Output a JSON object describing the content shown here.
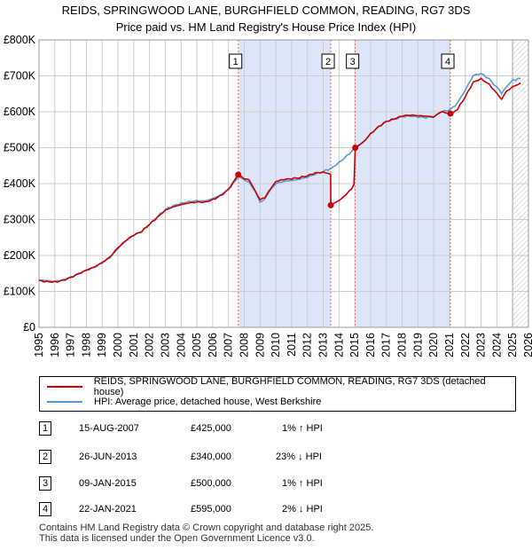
{
  "title_line1": "REIDS, SPRINGWOOD LANE, BURGHFIELD COMMON, READING, RG7 3DS",
  "title_line2": "Price paid vs. HM Land Registry's House Price Index (HPI)",
  "colors": {
    "property": "#cc0000",
    "hpi": "#5b9bd5",
    "band": "#dde6f8",
    "marker_line": "#e07070",
    "grid": "#cccccc"
  },
  "chart_data": {
    "type": "line",
    "title": "REIDS, SPRINGWOOD LANE, BURGHFIELD COMMON, READING, RG7 3DS",
    "subtitle": "Price paid vs. HM Land Registry's House Price Index (HPI)",
    "xlim": [
      1995,
      2026
    ],
    "ylim": [
      0,
      800000
    ],
    "x_ticks": [
      "1995",
      "1996",
      "1997",
      "1998",
      "1999",
      "2000",
      "2001",
      "2002",
      "2003",
      "2004",
      "2005",
      "2006",
      "2007",
      "2008",
      "2009",
      "2010",
      "2011",
      "2012",
      "2013",
      "2014",
      "2015",
      "2016",
      "2017",
      "2018",
      "2019",
      "2020",
      "2021",
      "2022",
      "2023",
      "2024",
      "2025",
      "2026"
    ],
    "y_ticks": [
      {
        "value": 0,
        "label": "£0"
      },
      {
        "value": 100000,
        "label": "£100K"
      },
      {
        "value": 200000,
        "label": "£200K"
      },
      {
        "value": 300000,
        "label": "£300K"
      },
      {
        "value": 400000,
        "label": "£400K"
      },
      {
        "value": 500000,
        "label": "£500K"
      },
      {
        "value": 600000,
        "label": "£600K"
      },
      {
        "value": 700000,
        "label": "£700K"
      },
      {
        "value": 800000,
        "label": "£800K"
      }
    ],
    "series": [
      {
        "name": "REIDS, SPRINGWOOD LANE, BURGHFIELD COMMON, READING, RG7 3DS (detached house)",
        "points": [
          [
            1995.0,
            131000
          ],
          [
            1995.5,
            129000
          ],
          [
            1996.0,
            128000
          ],
          [
            1996.5,
            132000
          ],
          [
            1997.0,
            140000
          ],
          [
            1997.5,
            150000
          ],
          [
            1998.0,
            160000
          ],
          [
            1998.5,
            168000
          ],
          [
            1999.0,
            180000
          ],
          [
            1999.5,
            195000
          ],
          [
            2000.0,
            220000
          ],
          [
            2000.5,
            240000
          ],
          [
            2001.0,
            255000
          ],
          [
            2001.5,
            265000
          ],
          [
            2002.0,
            285000
          ],
          [
            2002.5,
            305000
          ],
          [
            2003.0,
            325000
          ],
          [
            2003.5,
            335000
          ],
          [
            2004.0,
            342000
          ],
          [
            2004.5,
            347000
          ],
          [
            2005.0,
            350000
          ],
          [
            2005.5,
            350000
          ],
          [
            2006.0,
            357000
          ],
          [
            2006.5,
            368000
          ],
          [
            2007.0,
            385000
          ],
          [
            2007.62,
            425000
          ],
          [
            2008.0,
            415000
          ],
          [
            2008.3,
            410000
          ],
          [
            2008.7,
            380000
          ],
          [
            2009.0,
            355000
          ],
          [
            2009.3,
            360000
          ],
          [
            2009.7,
            390000
          ],
          [
            2010.0,
            405000
          ],
          [
            2010.5,
            410000
          ],
          [
            2011.0,
            412000
          ],
          [
            2011.5,
            415000
          ],
          [
            2012.0,
            420000
          ],
          [
            2012.5,
            428000
          ],
          [
            2013.0,
            430000
          ],
          [
            2013.47,
            428000
          ],
          [
            2013.48,
            340000
          ],
          [
            2013.7,
            345000
          ],
          [
            2014.0,
            352000
          ],
          [
            2014.5,
            372000
          ],
          [
            2014.95,
            398000
          ],
          [
            2015.03,
            500000
          ],
          [
            2015.5,
            515000
          ],
          [
            2016.0,
            540000
          ],
          [
            2016.5,
            560000
          ],
          [
            2017.0,
            575000
          ],
          [
            2017.5,
            582000
          ],
          [
            2018.0,
            590000
          ],
          [
            2018.5,
            592000
          ],
          [
            2019.0,
            590000
          ],
          [
            2019.5,
            588000
          ],
          [
            2020.0,
            585000
          ],
          [
            2020.5,
            600000
          ],
          [
            2021.06,
            595000
          ],
          [
            2021.5,
            605000
          ],
          [
            2022.0,
            640000
          ],
          [
            2022.5,
            680000
          ],
          [
            2023.0,
            690000
          ],
          [
            2023.5,
            675000
          ],
          [
            2024.0,
            650000
          ],
          [
            2024.3,
            635000
          ],
          [
            2024.6,
            660000
          ],
          [
            2025.0,
            670000
          ],
          [
            2025.5,
            680000
          ]
        ]
      },
      {
        "name": "HPI: Average price, detached house, West Berkshire",
        "points": [
          [
            1995.0,
            132000
          ],
          [
            1995.5,
            130000
          ],
          [
            1996.0,
            129000
          ],
          [
            1996.5,
            133000
          ],
          [
            1997.0,
            141000
          ],
          [
            1997.5,
            151000
          ],
          [
            1998.0,
            161000
          ],
          [
            1998.5,
            169000
          ],
          [
            1999.0,
            181000
          ],
          [
            1999.5,
            196000
          ],
          [
            2000.0,
            221000
          ],
          [
            2000.5,
            241000
          ],
          [
            2001.0,
            256000
          ],
          [
            2001.5,
            266000
          ],
          [
            2002.0,
            286000
          ],
          [
            2002.5,
            306000
          ],
          [
            2003.0,
            326000
          ],
          [
            2003.5,
            336000
          ],
          [
            2004.0,
            343000
          ],
          [
            2004.5,
            348000
          ],
          [
            2005.0,
            351000
          ],
          [
            2005.5,
            351000
          ],
          [
            2006.0,
            358000
          ],
          [
            2006.5,
            369000
          ],
          [
            2007.0,
            386000
          ],
          [
            2007.62,
            420000
          ],
          [
            2008.0,
            412000
          ],
          [
            2008.3,
            406000
          ],
          [
            2008.7,
            378000
          ],
          [
            2009.0,
            352000
          ],
          [
            2009.3,
            357000
          ],
          [
            2009.7,
            386000
          ],
          [
            2010.0,
            402000
          ],
          [
            2010.5,
            407000
          ],
          [
            2011.0,
            409000
          ],
          [
            2011.5,
            412000
          ],
          [
            2012.0,
            417000
          ],
          [
            2012.5,
            425000
          ],
          [
            2013.0,
            432000
          ],
          [
            2013.47,
            440000
          ],
          [
            2014.0,
            456000
          ],
          [
            2014.5,
            475000
          ],
          [
            2015.03,
            497000
          ],
          [
            2015.5,
            512000
          ],
          [
            2016.0,
            538000
          ],
          [
            2016.5,
            558000
          ],
          [
            2017.0,
            573000
          ],
          [
            2017.5,
            580000
          ],
          [
            2018.0,
            588000
          ],
          [
            2018.5,
            590000
          ],
          [
            2019.0,
            588000
          ],
          [
            2019.5,
            586000
          ],
          [
            2020.0,
            588000
          ],
          [
            2020.5,
            602000
          ],
          [
            2021.06,
            608000
          ],
          [
            2021.5,
            625000
          ],
          [
            2022.0,
            660000
          ],
          [
            2022.5,
            700000
          ],
          [
            2023.0,
            705000
          ],
          [
            2023.5,
            690000
          ],
          [
            2024.0,
            665000
          ],
          [
            2024.3,
            650000
          ],
          [
            2024.6,
            672000
          ],
          [
            2025.0,
            685000
          ],
          [
            2025.5,
            692000
          ]
        ]
      }
    ],
    "shaded_ranges": [
      [
        2007.62,
        2013.48
      ],
      [
        2015.03,
        2021.06
      ]
    ],
    "projection_after": 2025.0,
    "sales": [
      {
        "id": "1",
        "date": "15-AUG-2007",
        "x": 2007.62,
        "price": 425000,
        "price_label": "£425,000",
        "hpi": "1% ↑ HPI"
      },
      {
        "id": "2",
        "date": "26-JUN-2013",
        "x": 2013.48,
        "price": 340000,
        "price_label": "£340,000",
        "hpi": "23% ↓ HPI"
      },
      {
        "id": "3",
        "date": "09-JAN-2015",
        "x": 2015.03,
        "price": 500000,
        "price_label": "£500,000",
        "hpi": "1% ↑ HPI"
      },
      {
        "id": "4",
        "date": "22-JAN-2021",
        "x": 2021.06,
        "price": 595000,
        "price_label": "£595,000",
        "hpi": "2% ↓ HPI"
      }
    ]
  },
  "legend": {
    "property_label": "REIDS, SPRINGWOOD LANE, BURGHFIELD COMMON, READING, RG7 3DS (detached house)",
    "hpi_label": "HPI: Average price, detached house, West Berkshire"
  },
  "footer": {
    "line1": "Contains HM Land Registry data © Crown copyright and database right 2025.",
    "line2": "This data is licensed under the Open Government Licence v3.0."
  }
}
